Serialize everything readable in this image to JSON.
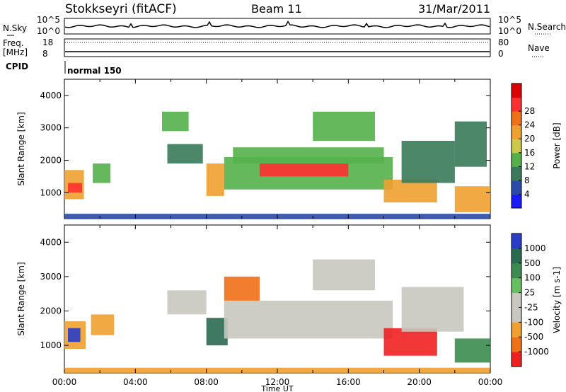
{
  "header": {
    "title": "Stokkseyri (fitACF)",
    "beam": "Beam 11",
    "date": "31/Mar/2011"
  },
  "strip_labels": {
    "nsky": "N.Sky",
    "nsearch": "N.Search",
    "freq": "Freq.",
    "freq_unit": "[MHz]",
    "nave": "Nave",
    "cpid": "CPID",
    "cpid_value": "normal 150",
    "nsky_top_tick": "10^5",
    "nsky_bottom_tick": "10^0",
    "freq_top_tick": "18",
    "freq_bottom_tick": "8",
    "nave_top_tick": "80",
    "nave_bottom_tick": "0"
  },
  "chart_data": [
    {
      "type": "heatmap",
      "name": "power-panel",
      "ylabel": "Slant Range [km]",
      "ylim": [
        200,
        4500
      ],
      "yticks": [
        "1000",
        "2000",
        "3000",
        "4000"
      ],
      "colorbar": {
        "label": "Power [dB]",
        "ticks": [
          "4",
          "8",
          "12",
          "16",
          "20",
          "24",
          "28"
        ],
        "colors": [
          "#1a1aff",
          "#2a4aa8",
          "#3a7a5a",
          "#55b04a",
          "#ccc84a",
          "#f0a030",
          "#f07018",
          "#ff3030",
          "#dd0000"
        ]
      },
      "regions": [
        {
          "t0": 0.0,
          "t1": 1.1,
          "r0": 800,
          "r1": 1700,
          "level": 5
        },
        {
          "t0": 0.2,
          "t1": 1.0,
          "r0": 1000,
          "r1": 1300,
          "level": 7
        },
        {
          "t0": 1.6,
          "t1": 2.6,
          "r0": 1300,
          "r1": 1900,
          "level": 3
        },
        {
          "t0": 5.8,
          "t1": 7.8,
          "r0": 1900,
          "r1": 2500,
          "level": 2
        },
        {
          "t0": 8.0,
          "t1": 9.0,
          "r0": 900,
          "r1": 1900,
          "level": 5
        },
        {
          "t0": 9.0,
          "t1": 18.5,
          "r0": 1100,
          "r1": 2100,
          "level": 3
        },
        {
          "t0": 11.0,
          "t1": 16.0,
          "r0": 1500,
          "r1": 1900,
          "level": 7
        },
        {
          "t0": 9.5,
          "t1": 18.0,
          "r0": 1900,
          "r1": 2400,
          "level": 3
        },
        {
          "t0": 5.5,
          "t1": 7.0,
          "r0": 2900,
          "r1": 3500,
          "level": 3
        },
        {
          "t0": 14.0,
          "t1": 17.5,
          "r0": 2600,
          "r1": 3500,
          "level": 3
        },
        {
          "t0": 18.0,
          "t1": 21.0,
          "r0": 700,
          "r1": 1400,
          "level": 5
        },
        {
          "t0": 19.0,
          "t1": 22.0,
          "r0": 1300,
          "r1": 2600,
          "level": 2
        },
        {
          "t0": 22.0,
          "t1": 24.0,
          "r0": 400,
          "r1": 1200,
          "level": 5
        },
        {
          "t0": 22.0,
          "t1": 23.8,
          "r0": 1800,
          "r1": 3200,
          "level": 2
        },
        {
          "t0": 0.0,
          "t1": 24.0,
          "r0": 200,
          "r1": 350,
          "level": 1
        }
      ]
    },
    {
      "type": "heatmap",
      "name": "velocity-panel",
      "ylabel": "Slant Range [km]",
      "ylim": [
        200,
        4500
      ],
      "yticks": [
        "1000",
        "2000",
        "3000",
        "4000"
      ],
      "xticks": [
        "00:00",
        "04:00",
        "08:00",
        "12:00",
        "16:00",
        "20:00",
        "00:00"
      ],
      "xlabel": "Time UT",
      "colorbar": {
        "label": "Velocity [m s-1]",
        "ticks": [
          "1000",
          "500",
          "100",
          "25",
          "-25",
          "-100",
          "-500",
          "-1000"
        ],
        "colors": [
          "#2a3cc8",
          "#2a6a50",
          "#3c8c50",
          "#66c060",
          "#c8c8c0",
          "#c8c8c0",
          "#f0a030",
          "#f07018",
          "#ee2020"
        ]
      },
      "regions": [
        {
          "t0": 0.0,
          "t1": 1.2,
          "r0": 900,
          "r1": 1700,
          "level": 6
        },
        {
          "t0": 0.2,
          "t1": 0.9,
          "r0": 1100,
          "r1": 1500,
          "level": 0
        },
        {
          "t0": 1.5,
          "t1": 2.8,
          "r0": 1300,
          "r1": 1900,
          "level": 6
        },
        {
          "t0": 5.8,
          "t1": 8.0,
          "r0": 1900,
          "r1": 2600,
          "level": 4
        },
        {
          "t0": 8.0,
          "t1": 9.2,
          "r0": 1000,
          "r1": 1800,
          "level": 1
        },
        {
          "t0": 9.0,
          "t1": 18.5,
          "r0": 1200,
          "r1": 2300,
          "level": 4
        },
        {
          "t0": 9.0,
          "t1": 11.0,
          "r0": 2300,
          "r1": 3000,
          "level": 7
        },
        {
          "t0": 14.0,
          "t1": 17.5,
          "r0": 2600,
          "r1": 3500,
          "level": 4
        },
        {
          "t0": 18.0,
          "t1": 21.0,
          "r0": 700,
          "r1": 1500,
          "level": 8
        },
        {
          "t0": 19.0,
          "t1": 22.5,
          "r0": 1400,
          "r1": 2700,
          "level": 4
        },
        {
          "t0": 22.0,
          "t1": 24.0,
          "r0": 500,
          "r1": 1200,
          "level": 2
        },
        {
          "t0": 0.0,
          "t1": 24.0,
          "r0": 200,
          "r1": 350,
          "level": 6
        }
      ]
    }
  ]
}
